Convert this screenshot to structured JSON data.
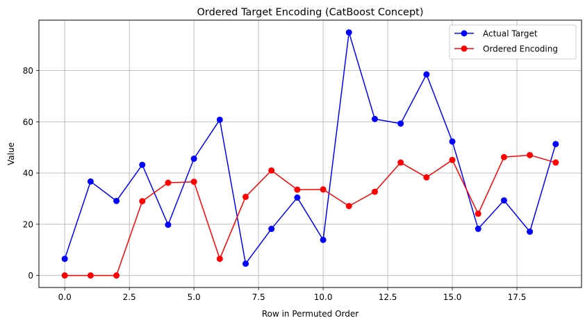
{
  "chart_data": {
    "type": "line",
    "title": "Ordered Target Encoding (CatBoost Concept)",
    "xlabel": "Row in Permuted Order",
    "ylabel": "Value",
    "xlim": [
      -1,
      20
    ],
    "ylim": [
      -4.7,
      99.7
    ],
    "xticks": [
      0.0,
      2.5,
      5.0,
      7.5,
      10.0,
      12.5,
      15.0,
      17.5
    ],
    "xtick_labels": [
      "0.0",
      "2.5",
      "5.0",
      "7.5",
      "10.0",
      "12.5",
      "15.0",
      "17.5"
    ],
    "yticks": [
      0,
      20,
      40,
      60,
      80
    ],
    "ytick_labels": [
      "0",
      "20",
      "40",
      "60",
      "80"
    ],
    "grid": true,
    "legend_position": "top-right",
    "x": [
      0,
      1,
      2,
      3,
      4,
      5,
      6,
      7,
      8,
      9,
      10,
      11,
      12,
      13,
      14,
      15,
      16,
      17,
      18,
      19
    ],
    "series": [
      {
        "name": "Actual Target",
        "color": "#0000ff",
        "values": [
          6.5,
          36.7,
          29.1,
          43.2,
          19.8,
          45.6,
          60.8,
          4.6,
          18.2,
          30.4,
          13.9,
          94.9,
          61.1,
          59.3,
          78.5,
          52.3,
          18.2,
          29.3,
          17.1,
          51.3
        ]
      },
      {
        "name": "Ordered Encoding",
        "color": "#ff0000",
        "values": [
          0.0,
          0.0,
          0.0,
          29.0,
          36.2,
          36.6,
          6.5,
          30.7,
          41.0,
          33.5,
          33.6,
          27.1,
          32.7,
          44.1,
          38.3,
          45.1,
          24.1,
          46.2,
          47.0,
          44.1
        ]
      }
    ]
  }
}
